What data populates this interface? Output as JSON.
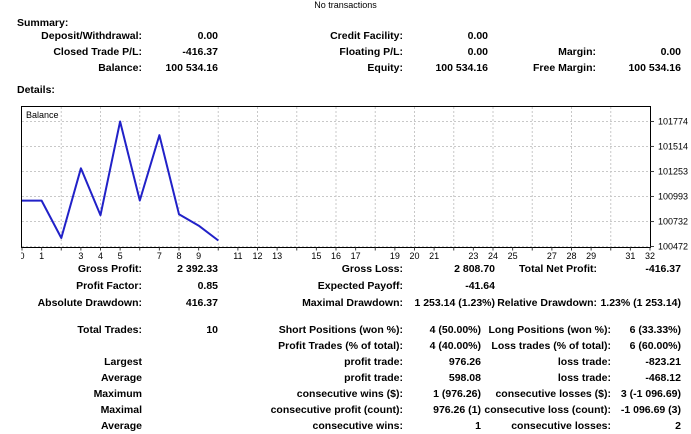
{
  "header": {
    "note": "No transactions"
  },
  "summary": {
    "title": "Summary:",
    "rows": [
      [
        "Deposit/Withdrawal:",
        "0.00",
        "Credit Facility:",
        "0.00",
        "",
        ""
      ],
      [
        "Closed Trade P/L:",
        "-416.37",
        "Floating P/L:",
        "0.00",
        "Margin:",
        "0.00"
      ],
      [
        "Balance:",
        "100 534.16",
        "Equity:",
        "100 534.16",
        "Free Margin:",
        "100 534.16"
      ]
    ]
  },
  "details": {
    "title": "Details:",
    "rows_profit": [
      [
        "Gross Profit:",
        "2 392.33",
        "Gross Loss:",
        "2 808.70",
        "Total Net Profit:",
        "-416.37"
      ],
      [
        "Profit Factor:",
        "0.85",
        "Expected Payoff:",
        "-41.64",
        "",
        ""
      ],
      [
        "Absolute Drawdown:",
        "416.37",
        "Maximal Drawdown:",
        "1 253.14 (1.23%)",
        "Relative Drawdown:",
        "1.23% (1 253.14)"
      ]
    ],
    "rows_trades": [
      [
        "Total Trades:",
        "10",
        "Short Positions (won %):",
        "4 (50.00%)",
        "Long Positions (won %):",
        "6 (33.33%)"
      ],
      [
        "",
        "",
        "Profit Trades (% of total):",
        "4 (40.00%)",
        "Loss trades (% of total):",
        "6 (60.00%)"
      ],
      [
        "Largest",
        "",
        "profit trade:",
        "976.26",
        "loss trade:",
        "-823.21"
      ],
      [
        "Average",
        "",
        "profit trade:",
        "598.08",
        "loss trade:",
        "-468.12"
      ],
      [
        "Maximum",
        "",
        "consecutive wins ($):",
        "1 (976.26)",
        "consecutive losses ($):",
        "3 (-1 096.69)"
      ],
      [
        "Maximal",
        "",
        "consecutive profit (count):",
        "976.26 (1)",
        "consecutive loss (count):",
        "-1 096.69 (3)"
      ],
      [
        "Average",
        "",
        "consecutive wins:",
        "1",
        "consecutive losses:",
        "2"
      ]
    ]
  },
  "chart_data": {
    "type": "line",
    "title": "Balance",
    "xlabel": "",
    "ylabel": "",
    "x": [
      0,
      1,
      2,
      3,
      4,
      5,
      6,
      7,
      8,
      9,
      10
    ],
    "series": [
      {
        "name": "Balance",
        "values": [
          100950.53,
          100950.53,
          100560.53,
          101286.71,
          100797.91,
          101774.17,
          100950.96,
          101630.85,
          100807.64,
          100690.0,
          100534.16
        ]
      }
    ],
    "x_range": [
      0,
      32
    ],
    "x_tick_labels": [
      0,
      1,
      3,
      4,
      5,
      7,
      8,
      9,
      11,
      12,
      13,
      15,
      16,
      17,
      19,
      20,
      21,
      23,
      24,
      25,
      27,
      28,
      29,
      31,
      32
    ],
    "y_ticks": [
      100472,
      100732,
      100993,
      101253,
      101514,
      101774
    ],
    "grid": true,
    "legend_position": "top-left",
    "line_color": "#2121C8",
    "grid_color": "#c8c8c8",
    "border_color": "#000000"
  }
}
